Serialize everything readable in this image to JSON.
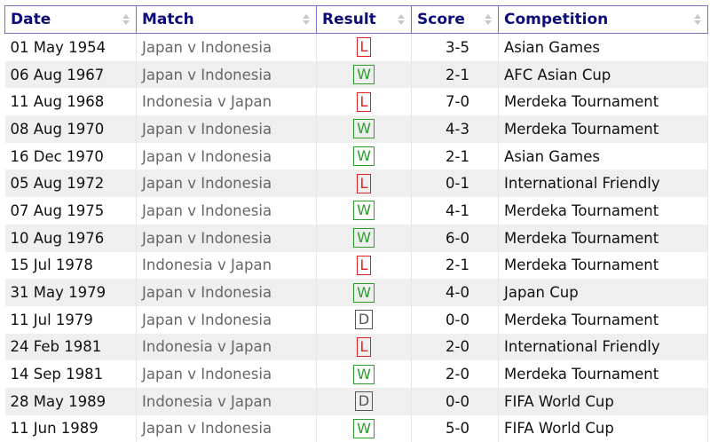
{
  "headers": [
    "Date",
    "Match",
    "Result",
    "Score",
    "Competition"
  ],
  "colors": {
    "W": "#2a9d2a",
    "L": "#e02020",
    "D": "#555555",
    "header": "#0c0c7a"
  },
  "rows": [
    [
      "01 May 1954",
      "Japan v Indonesia",
      "L",
      "3-5",
      "Asian Games"
    ],
    [
      "06 Aug 1967",
      "Japan v Indonesia",
      "W",
      "2-1",
      "AFC Asian Cup"
    ],
    [
      "11 Aug 1968",
      "Indonesia v Japan",
      "L",
      "7-0",
      "Merdeka Tournament"
    ],
    [
      "08 Aug 1970",
      "Japan v Indonesia",
      "W",
      "4-3",
      "Merdeka Tournament"
    ],
    [
      "16 Dec 1970",
      "Japan v Indonesia",
      "W",
      "2-1",
      "Asian Games"
    ],
    [
      "05 Aug 1972",
      "Japan v Indonesia",
      "L",
      "0-1",
      "International Friendly"
    ],
    [
      "07 Aug 1975",
      "Japan v Indonesia",
      "W",
      "4-1",
      "Merdeka Tournament"
    ],
    [
      "10 Aug 1976",
      "Japan v Indonesia",
      "W",
      "6-0",
      "Merdeka Tournament"
    ],
    [
      "15 Jul 1978",
      "Indonesia v Japan",
      "L",
      "2-1",
      "Merdeka Tournament"
    ],
    [
      "31 May 1979",
      "Japan v Indonesia",
      "W",
      "4-0",
      "Japan Cup"
    ],
    [
      "11 Jul 1979",
      "Japan v Indonesia",
      "D",
      "0-0",
      "Merdeka Tournament"
    ],
    [
      "24 Feb 1981",
      "Indonesia v Japan",
      "L",
      "2-0",
      "International Friendly"
    ],
    [
      "14 Sep 1981",
      "Japan v Indonesia",
      "W",
      "2-0",
      "Merdeka Tournament"
    ],
    [
      "28 May 1989",
      "Indonesia v Japan",
      "D",
      "0-0",
      "FIFA World Cup"
    ],
    [
      "11 Jun 1989",
      "Japan v Indonesia",
      "W",
      "5-0",
      "FIFA World Cup"
    ]
  ]
}
